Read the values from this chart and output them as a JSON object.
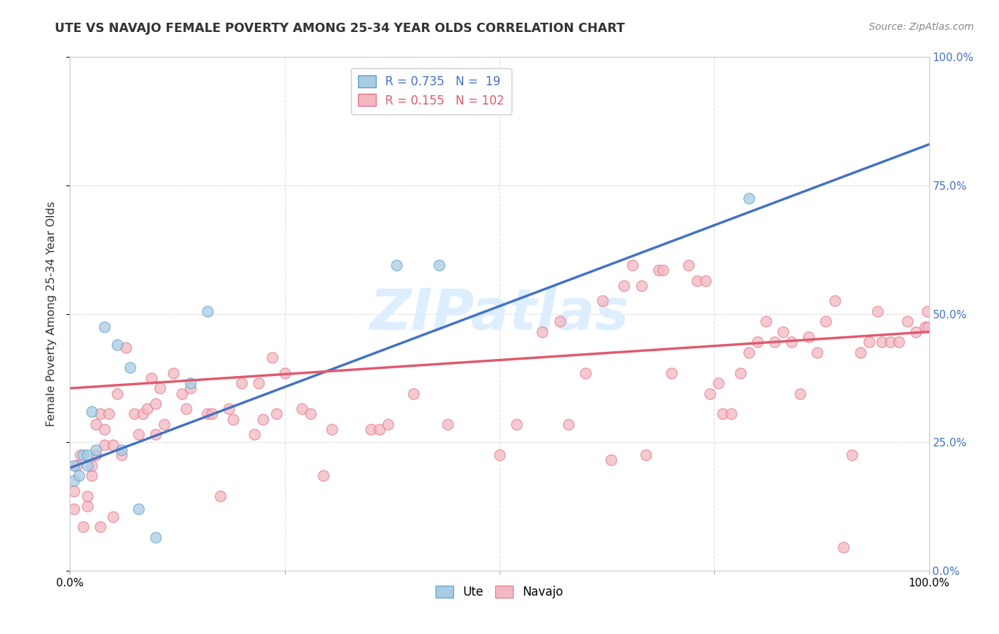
{
  "title": "UTE VS NAVAJO FEMALE POVERTY AMONG 25-34 YEAR OLDS CORRELATION CHART",
  "source": "Source: ZipAtlas.com",
  "ylabel": "Female Poverty Among 25-34 Year Olds",
  "xlim": [
    0,
    1
  ],
  "ylim": [
    0,
    1
  ],
  "xticks": [
    0,
    0.25,
    0.5,
    0.75,
    1.0
  ],
  "yticks": [
    0,
    0.25,
    0.5,
    0.75,
    1.0
  ],
  "xticklabels": [
    "0.0%",
    "",
    "",
    "",
    "100.0%"
  ],
  "yticklabels": [
    "0.0%",
    "25.0%",
    "50.0%",
    "75.0%",
    "100.0%"
  ],
  "ute_R": 0.735,
  "ute_N": 19,
  "navajo_R": 0.155,
  "navajo_N": 102,
  "ute_color": "#a8cce4",
  "navajo_color": "#f4b8c1",
  "ute_line_color": "#4472c4",
  "navajo_line_color": "#e05a6e",
  "ute_edge_color": "#5a9dc8",
  "navajo_edge_color": "#e07080",
  "background_color": "#ffffff",
  "watermark": "ZIPatlas",
  "watermark_color": "#ddeeff",
  "ute_line_y0": 0.2,
  "ute_line_y1": 0.83,
  "navajo_line_y0": 0.355,
  "navajo_line_y1": 0.465,
  "ute_x": [
    0.005,
    0.005,
    0.01,
    0.015,
    0.02,
    0.02,
    0.025,
    0.03,
    0.04,
    0.055,
    0.06,
    0.07,
    0.08,
    0.1,
    0.14,
    0.16,
    0.38,
    0.43,
    0.79
  ],
  "ute_y": [
    0.175,
    0.205,
    0.185,
    0.225,
    0.205,
    0.225,
    0.31,
    0.235,
    0.475,
    0.44,
    0.235,
    0.395,
    0.12,
    0.065,
    0.365,
    0.505,
    0.595,
    0.595,
    0.725
  ],
  "navajo_x": [
    0.005,
    0.005,
    0.008,
    0.012,
    0.015,
    0.02,
    0.02,
    0.025,
    0.025,
    0.03,
    0.03,
    0.035,
    0.035,
    0.04,
    0.04,
    0.045,
    0.05,
    0.05,
    0.055,
    0.06,
    0.065,
    0.075,
    0.08,
    0.085,
    0.09,
    0.095,
    0.1,
    0.1,
    0.105,
    0.11,
    0.12,
    0.13,
    0.135,
    0.14,
    0.16,
    0.165,
    0.175,
    0.185,
    0.19,
    0.2,
    0.215,
    0.22,
    0.225,
    0.235,
    0.24,
    0.25,
    0.27,
    0.28,
    0.295,
    0.305,
    0.35,
    0.36,
    0.37,
    0.4,
    0.44,
    0.5,
    0.52,
    0.55,
    0.57,
    0.58,
    0.6,
    0.62,
    0.63,
    0.645,
    0.655,
    0.665,
    0.67,
    0.685,
    0.69,
    0.7,
    0.72,
    0.73,
    0.74,
    0.745,
    0.755,
    0.76,
    0.77,
    0.78,
    0.79,
    0.8,
    0.81,
    0.82,
    0.83,
    0.84,
    0.85,
    0.86,
    0.87,
    0.88,
    0.89,
    0.9,
    0.91,
    0.92,
    0.93,
    0.94,
    0.945,
    0.955,
    0.965,
    0.975,
    0.985,
    0.995,
    0.998,
    0.999
  ],
  "navajo_y": [
    0.12,
    0.155,
    0.205,
    0.225,
    0.085,
    0.125,
    0.145,
    0.185,
    0.205,
    0.225,
    0.285,
    0.305,
    0.085,
    0.245,
    0.275,
    0.305,
    0.105,
    0.245,
    0.345,
    0.225,
    0.435,
    0.305,
    0.265,
    0.305,
    0.315,
    0.375,
    0.265,
    0.325,
    0.355,
    0.285,
    0.385,
    0.345,
    0.315,
    0.355,
    0.305,
    0.305,
    0.145,
    0.315,
    0.295,
    0.365,
    0.265,
    0.365,
    0.295,
    0.415,
    0.305,
    0.385,
    0.315,
    0.305,
    0.185,
    0.275,
    0.275,
    0.275,
    0.285,
    0.345,
    0.285,
    0.225,
    0.285,
    0.465,
    0.485,
    0.285,
    0.385,
    0.525,
    0.215,
    0.555,
    0.595,
    0.555,
    0.225,
    0.585,
    0.585,
    0.385,
    0.595,
    0.565,
    0.565,
    0.345,
    0.365,
    0.305,
    0.305,
    0.385,
    0.425,
    0.445,
    0.485,
    0.445,
    0.465,
    0.445,
    0.345,
    0.455,
    0.425,
    0.485,
    0.525,
    0.045,
    0.225,
    0.425,
    0.445,
    0.505,
    0.445,
    0.445,
    0.445,
    0.485,
    0.465,
    0.475,
    0.505,
    0.475
  ]
}
